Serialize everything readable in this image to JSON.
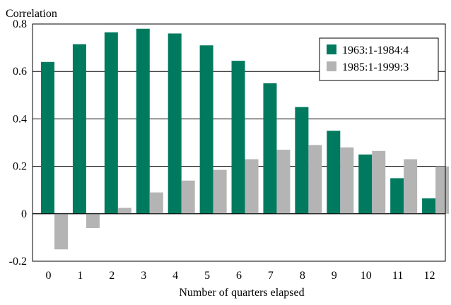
{
  "chart_data": {
    "type": "bar",
    "ylabel": "Correlation",
    "xlabel": "Number of quarters elapsed",
    "categories": [
      "0",
      "1",
      "2",
      "3",
      "4",
      "5",
      "6",
      "7",
      "8",
      "9",
      "10",
      "11",
      "12"
    ],
    "series": [
      {
        "name": "1963:1-1984:4",
        "color": "#007a5e",
        "values": [
          0.64,
          0.715,
          0.765,
          0.78,
          0.76,
          0.71,
          0.645,
          0.55,
          0.45,
          0.35,
          0.25,
          0.15,
          0.065
        ]
      },
      {
        "name": "1985:1-1999:3",
        "color": "#b4b4b4",
        "values": [
          -0.15,
          -0.06,
          0.025,
          0.09,
          0.14,
          0.185,
          0.23,
          0.27,
          0.29,
          0.28,
          0.265,
          0.23,
          0.2
        ]
      }
    ],
    "yticks": [
      "-0.2",
      "0",
      "0.2",
      "0.4",
      "0.6",
      "0.8"
    ],
    "ylim": [
      -0.2,
      0.8
    ],
    "grid": "horizontal",
    "legend": "top-right"
  }
}
